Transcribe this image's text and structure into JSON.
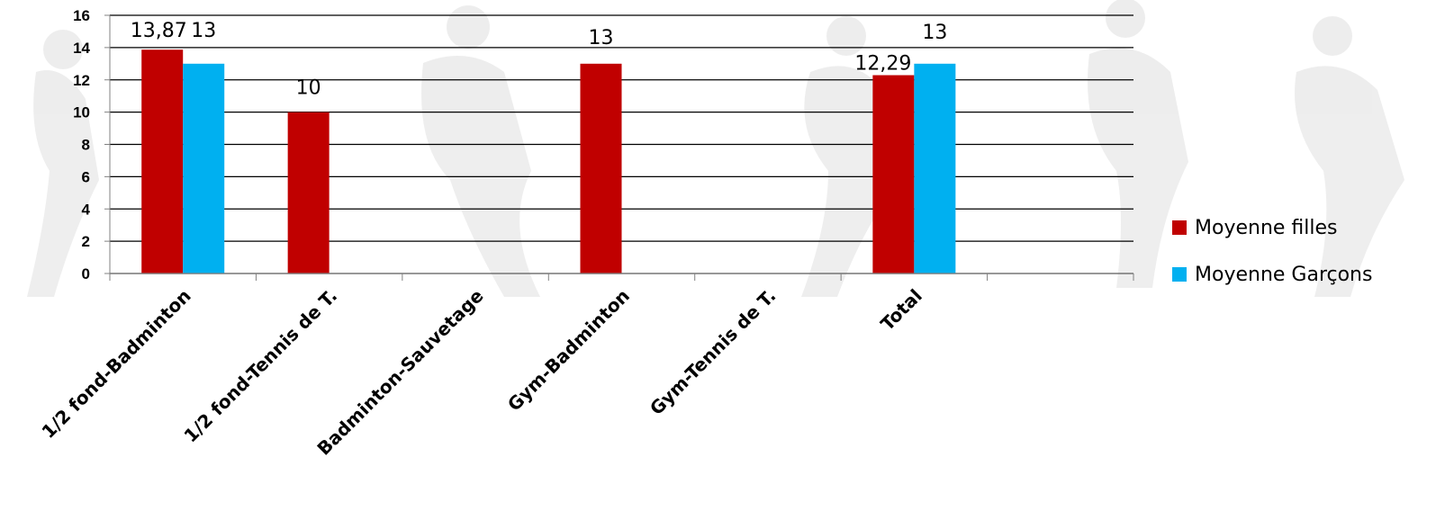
{
  "chart_data": {
    "type": "bar",
    "categories": [
      "1/2 fond-Badminton",
      "1/2 fond-Tennis de T.",
      "Badminton-Sauvetage",
      "Gym-Badminton",
      "Gym-Tennis de T.",
      "Total"
    ],
    "series": [
      {
        "name": "Moyenne filles",
        "color": "#c00000",
        "values": [
          13.87,
          10,
          null,
          13,
          null,
          12.29
        ],
        "labels": [
          "13,87",
          "10",
          "",
          "13",
          "",
          "12,29"
        ]
      },
      {
        "name": "Moyenne Garçons",
        "color": "#00b0f0",
        "values": [
          13,
          null,
          null,
          null,
          null,
          13
        ],
        "labels": [
          "13",
          "",
          "",
          "",
          "",
          "13"
        ]
      }
    ],
    "ylim": [
      0,
      16
    ],
    "yticks": [
      "0",
      "2",
      "4",
      "6",
      "8",
      "10",
      "12",
      "14",
      "16"
    ],
    "grid": true,
    "legend_position": "right",
    "background": "silhouettes of athletes (watermark)"
  }
}
